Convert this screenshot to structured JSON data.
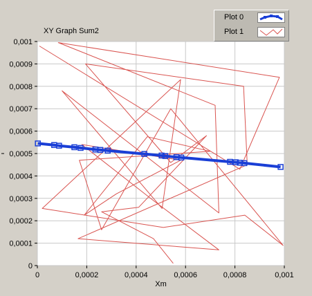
{
  "chart_data": {
    "type": "line",
    "title": "XY Graph Sum2",
    "xlabel": "Xm",
    "ylabel": "",
    "xlim": [
      0,
      0.001
    ],
    "ylim": [
      0,
      0.001
    ],
    "x_ticks": [
      "0",
      "0,0002",
      "0,0004",
      "0,0006",
      "0,0008",
      "0,001"
    ],
    "y_ticks": [
      "0",
      "0,0001",
      "0,0002",
      "0,0003",
      "0,0004",
      "0,0005",
      "0,0006",
      "0,0007",
      "0,0008",
      "0,0009",
      "0,001"
    ],
    "grid": true,
    "legend_position": "top-right",
    "series": [
      {
        "name": "Plot 0",
        "color": "#1a3fd6",
        "marker": "square",
        "x": [
          2e-06,
          6.8e-05,
          8.8e-05,
          0.00015,
          0.000175,
          0.000235,
          0.000255,
          0.000285,
          0.000433,
          0.000503,
          0.000518,
          0.000563,
          0.000583,
          0.00078,
          0.000803,
          0.00082,
          0.000838,
          0.000985
        ],
        "y": [
          0.000545,
          0.000538,
          0.000535,
          0.000528,
          0.000525,
          0.000518,
          0.000516,
          0.000513,
          0.000498,
          0.000491,
          0.000489,
          0.000484,
          0.000482,
          0.000463,
          0.000461,
          0.000459,
          0.000457,
          0.00044
        ]
      },
      {
        "name": "Plot 1",
        "color": "#d9534f",
        "x": [
          8e-06,
          0.00082,
          0.00098,
          8.5e-05,
          0.00072,
          0.000735,
          0.0001,
          0.000505,
          0.00058,
          2e-05,
          0.00051,
          0.00084,
          0.000995,
          0.00054,
          0.00026,
          0.00017,
          0.0007,
          0.000445,
          0.00019,
          0.00032,
          0.00058,
          0.00018,
          0.00047,
          0.000735,
          0.000165,
          0.00085,
          0.000835,
          0.000195,
          0.00054,
          0.000685,
          0.00041,
          0.00026,
          0.00047,
          0.00055
        ],
        "y": [
          0.00098,
          0.00043,
          0.00084,
          0.000995,
          0.000715,
          0.000235,
          0.00078,
          0.000255,
          0.00083,
          0.000255,
          0.00017,
          0.000225,
          9e-05,
          0.0007,
          0.00016,
          0.00047,
          0.00051,
          0.000575,
          0.000225,
          0.00032,
          0.00047,
          0.00054,
          0.00029,
          7e-05,
          0.00012,
          0.00045,
          0.0008,
          0.0009,
          0.00046,
          0.00058,
          0.00026,
          0.00024,
          0.00012,
          1e-05
        ]
      }
    ]
  }
}
